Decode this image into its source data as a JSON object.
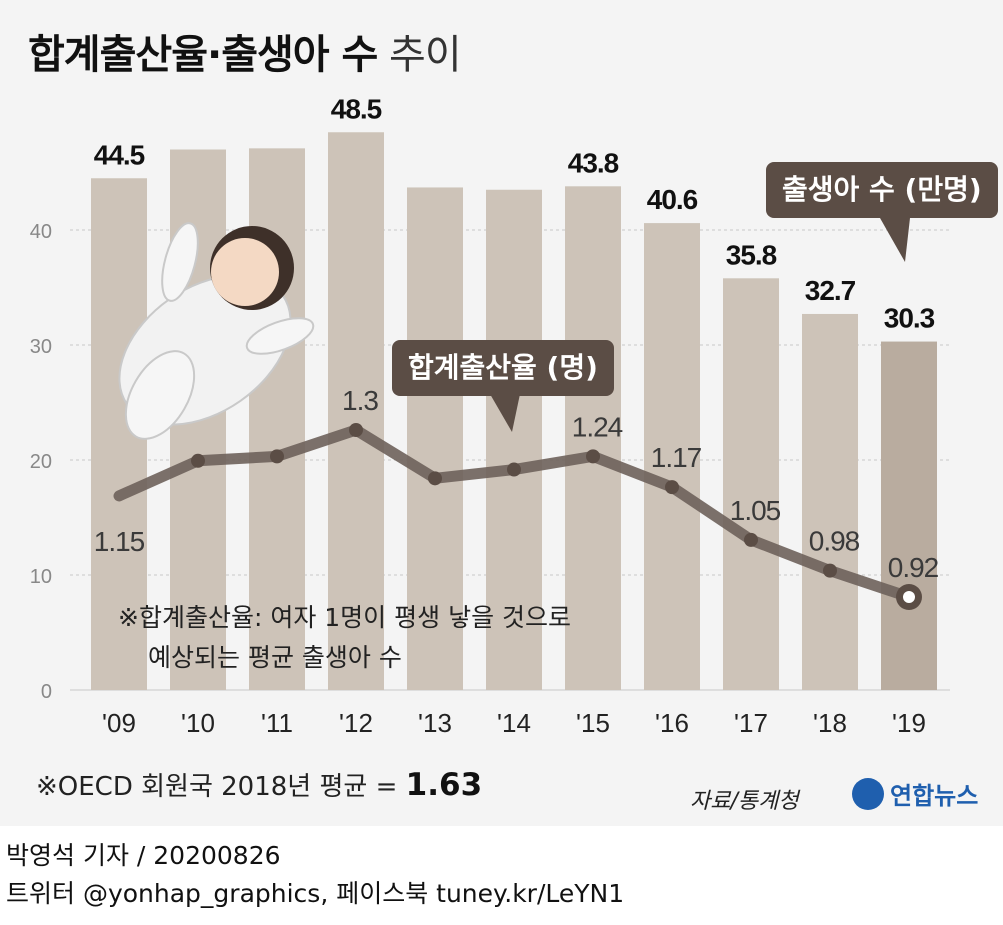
{
  "title": {
    "main": "합계출산율·출생아 수",
    "suffix": "추이"
  },
  "chart_data": {
    "type": "bar+line",
    "categories": [
      "'09",
      "'10",
      "'11",
      "'12",
      "'13",
      "'14",
      "'15",
      "'16",
      "'17",
      "'18",
      "'19"
    ],
    "bars": {
      "name": "출생아 수 (만명)",
      "values": [
        44.5,
        47.0,
        47.1,
        48.5,
        43.7,
        43.5,
        43.8,
        40.6,
        35.8,
        32.7,
        30.3
      ],
      "labels": [
        "44.5",
        "",
        "",
        "48.5",
        "",
        "",
        "43.8",
        "40.6",
        "35.8",
        "32.7",
        "30.3"
      ]
    },
    "line": {
      "name": "합계출산율 (명)",
      "values": [
        1.15,
        1.23,
        1.24,
        1.3,
        1.19,
        1.21,
        1.24,
        1.17,
        1.05,
        0.98,
        0.92
      ],
      "labels": [
        "1.15",
        "",
        "",
        "1.3",
        "",
        "",
        "1.24",
        "1.17",
        "1.05",
        "0.98",
        "0.92"
      ]
    },
    "y_ticks": [
      0,
      10,
      20,
      30,
      40
    ],
    "ylim": [
      0,
      55
    ],
    "grid": true,
    "colors": {
      "bar": "#cdc3b8",
      "bar_last": "#b9ac9f",
      "line": "#6e625b",
      "grid": "#c8c8c8",
      "callout": "#5b4d45"
    }
  },
  "note": [
    "※합계출산율: 여자 1명이 평생 낳을 것으로",
    "예상되는 평균 출생아 수"
  ],
  "oecd": {
    "text": "※OECD 회원국 2018년 평균 = ",
    "value": "1.63"
  },
  "source": "자료/통계청",
  "logo": "연합뉴스",
  "credit": {
    "line1": "박영석 기자 /  20200826",
    "line2": "트위터 @yonhap_graphics, 페이스북 tuney.kr/LeYN1"
  }
}
